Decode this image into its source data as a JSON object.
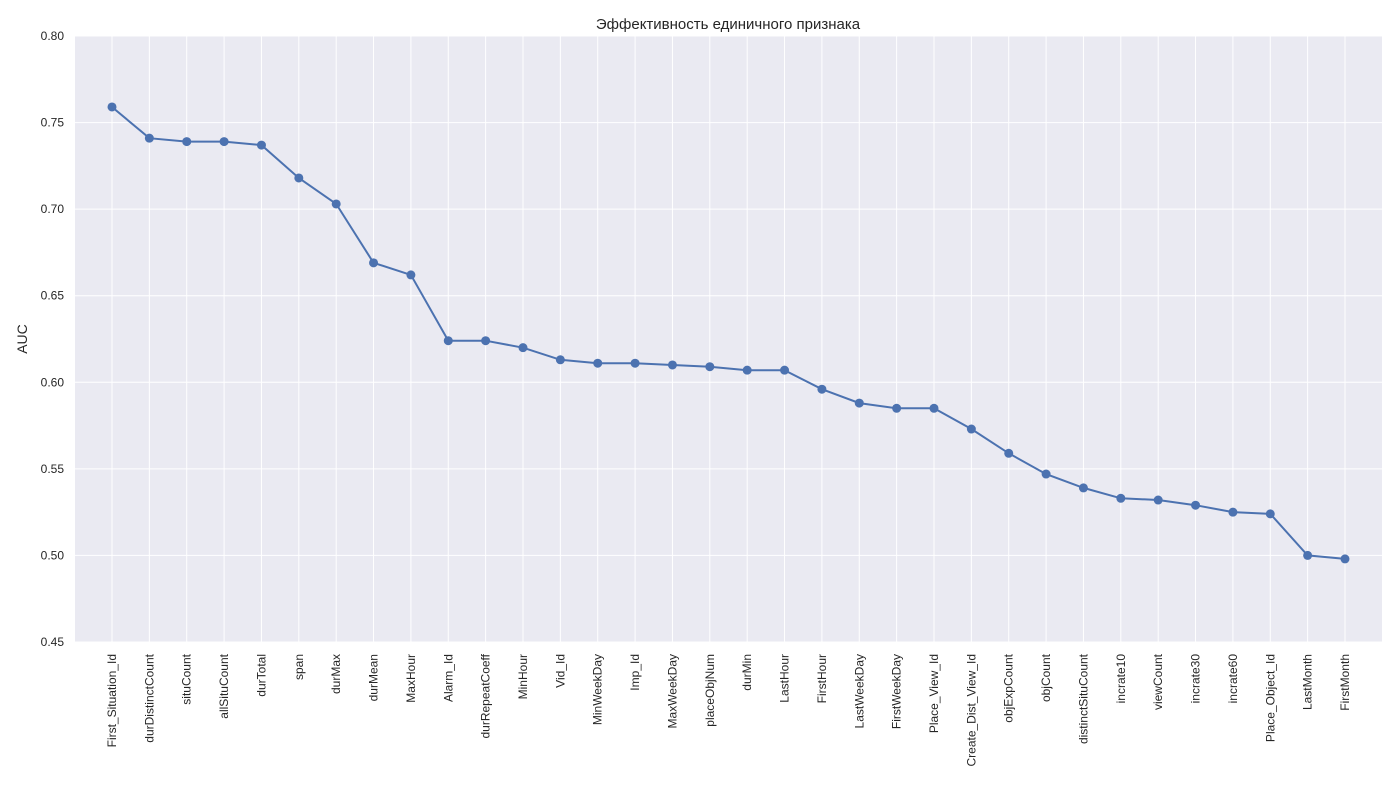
{
  "chart_data": {
    "type": "line",
    "title": "Эффективность единичного признака",
    "xlabel": "",
    "ylabel": "AUC",
    "ylim": [
      0.45,
      0.8
    ],
    "yticks": [
      "0.45",
      "0.50",
      "0.55",
      "0.60",
      "0.65",
      "0.70",
      "0.75",
      "0.80"
    ],
    "grid": true,
    "legend": "none",
    "colors": {
      "line": "#4c72b0",
      "background": "#eaeaf2",
      "grid": "#ffffff"
    },
    "categories": [
      "First_Situation_Id",
      "durDistinctCount",
      "situCount",
      "allSituCount",
      "durTotal",
      "span",
      "durMax",
      "durMean",
      "MaxHour",
      "Alarm_Id",
      "durRepeatCoeff",
      "MinHour",
      "Vid_Id",
      "MinWeekDay",
      "Imp_Id",
      "MaxWeekDay",
      "placeObjNum",
      "durMin",
      "LastHour",
      "FirstHour",
      "LastWeekDay",
      "FirstWeekDay",
      "Place_View_Id",
      "Create_Dist_View_Id",
      "objExpCount",
      "objCount",
      "distinctSituCount",
      "incrate10",
      "viewCount",
      "incrate30",
      "incrate60",
      "Place_Object_Id",
      "LastMonth",
      "FirstMonth"
    ],
    "values": [
      0.759,
      0.741,
      0.739,
      0.739,
      0.737,
      0.718,
      0.703,
      0.669,
      0.662,
      0.624,
      0.624,
      0.62,
      0.613,
      0.611,
      0.611,
      0.61,
      0.609,
      0.607,
      0.607,
      0.596,
      0.588,
      0.585,
      0.585,
      0.573,
      0.559,
      0.547,
      0.539,
      0.533,
      0.532,
      0.529,
      0.525,
      0.524,
      0.5,
      0.498
    ]
  }
}
